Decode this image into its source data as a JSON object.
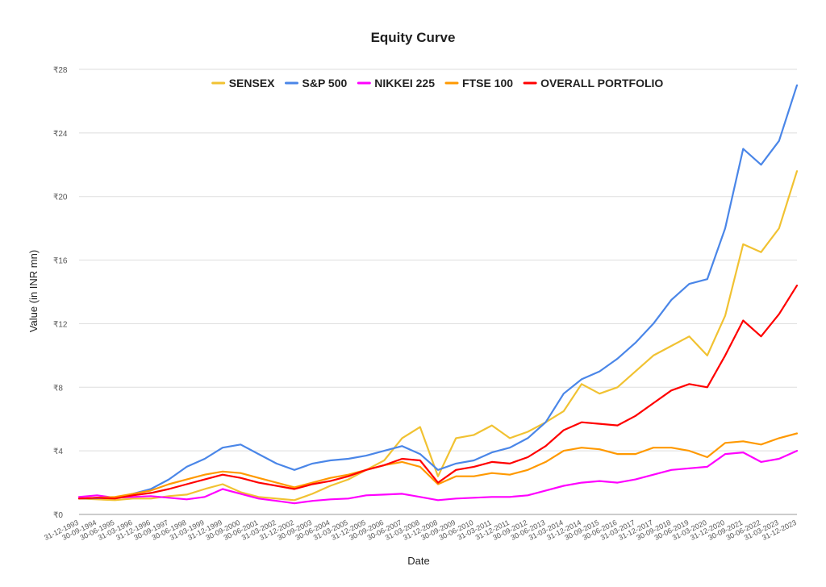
{
  "chart_data": {
    "type": "line",
    "title": "Equity Curve",
    "xlabel": "Date",
    "ylabel": "Value (in INR mn)",
    "ylim": [
      0,
      28
    ],
    "yticks": [
      "₹0",
      "₹4",
      "₹8",
      "₹12",
      "₹16",
      "₹20",
      "₹24",
      "₹28"
    ],
    "grid": true,
    "legend_position": "top",
    "x": [
      "31-12-1993",
      "30-09-1994",
      "30-06-1995",
      "31-03-1996",
      "31-12-1996",
      "30-09-1997",
      "30-06-1998",
      "31-03-1999",
      "31-12-1999",
      "30-09-2000",
      "30-06-2001",
      "31-03-2002",
      "31-12-2002",
      "30-09-2003",
      "30-06-2004",
      "31-03-2005",
      "31-12-2005",
      "30-09-2006",
      "30-06-2007",
      "31-03-2008",
      "31-12-2008",
      "30-09-2009",
      "30-06-2010",
      "31-03-2011",
      "31-12-2011",
      "30-09-2012",
      "30-06-2013",
      "31-03-2014",
      "31-12-2014",
      "30-09-2015",
      "30-06-2016",
      "31-03-2017",
      "31-12-2017",
      "30-09-2018",
      "30-06-2019",
      "31-03-2020",
      "31-12-2020",
      "30-09-2021",
      "30-06-2022",
      "31-03-2023",
      "31-12-2023"
    ],
    "series": [
      {
        "name": "SENSEX",
        "color": "#f1c232",
        "values": [
          1.0,
          0.95,
          0.9,
          1.0,
          1.0,
          1.15,
          1.25,
          1.6,
          1.9,
          1.4,
          1.1,
          1.0,
          0.9,
          1.3,
          1.8,
          2.2,
          2.8,
          3.4,
          4.8,
          5.5,
          2.4,
          4.8,
          5.0,
          5.6,
          4.8,
          5.2,
          5.8,
          6.5,
          8.2,
          7.6,
          8.0,
          9.0,
          10.0,
          10.6,
          11.2,
          10.0,
          12.5,
          17.0,
          16.5,
          18.0,
          21.6
        ]
      },
      {
        "name": "S&P 500",
        "color": "#4a86e8",
        "values": [
          1.0,
          1.02,
          1.05,
          1.3,
          1.6,
          2.2,
          3.0,
          3.5,
          4.2,
          4.4,
          3.8,
          3.2,
          2.8,
          3.2,
          3.4,
          3.5,
          3.7,
          4.0,
          4.3,
          3.8,
          2.8,
          3.2,
          3.4,
          3.9,
          4.2,
          4.8,
          5.8,
          7.6,
          8.5,
          9.0,
          9.8,
          10.8,
          12.0,
          13.5,
          14.5,
          14.8,
          18.0,
          23.0,
          22.0,
          23.5,
          27.0
        ]
      },
      {
        "name": "NIKKEI 225",
        "color": "#ff00ff",
        "values": [
          1.1,
          1.2,
          1.05,
          1.1,
          1.15,
          1.05,
          0.95,
          1.1,
          1.6,
          1.3,
          1.0,
          0.85,
          0.7,
          0.85,
          0.95,
          1.0,
          1.2,
          1.25,
          1.3,
          1.1,
          0.9,
          1.0,
          1.05,
          1.1,
          1.1,
          1.2,
          1.5,
          1.8,
          2.0,
          2.1,
          2.0,
          2.2,
          2.5,
          2.8,
          2.9,
          3.0,
          3.8,
          3.9,
          3.3,
          3.5,
          4.0
        ]
      },
      {
        "name": "FTSE 100",
        "color": "#ff9900",
        "values": [
          1.0,
          1.05,
          1.1,
          1.3,
          1.5,
          1.9,
          2.2,
          2.5,
          2.7,
          2.6,
          2.3,
          2.0,
          1.7,
          2.0,
          2.3,
          2.5,
          2.8,
          3.1,
          3.3,
          3.0,
          1.9,
          2.4,
          2.4,
          2.6,
          2.5,
          2.8,
          3.3,
          4.0,
          4.2,
          4.1,
          3.8,
          3.8,
          4.2,
          4.2,
          4.0,
          3.6,
          4.5,
          4.6,
          4.4,
          4.8,
          5.1
        ]
      },
      {
        "name": "OVERALL PORTFOLIO",
        "color": "#ff0000",
        "values": [
          1.0,
          1.05,
          1.0,
          1.2,
          1.35,
          1.6,
          1.9,
          2.2,
          2.5,
          2.3,
          2.0,
          1.8,
          1.6,
          1.9,
          2.1,
          2.4,
          2.8,
          3.1,
          3.5,
          3.4,
          2.0,
          2.8,
          3.0,
          3.3,
          3.2,
          3.6,
          4.3,
          5.3,
          5.8,
          5.7,
          5.6,
          6.2,
          7.0,
          7.8,
          8.2,
          8.0,
          10.0,
          12.2,
          11.2,
          12.6,
          14.4
        ]
      }
    ]
  }
}
